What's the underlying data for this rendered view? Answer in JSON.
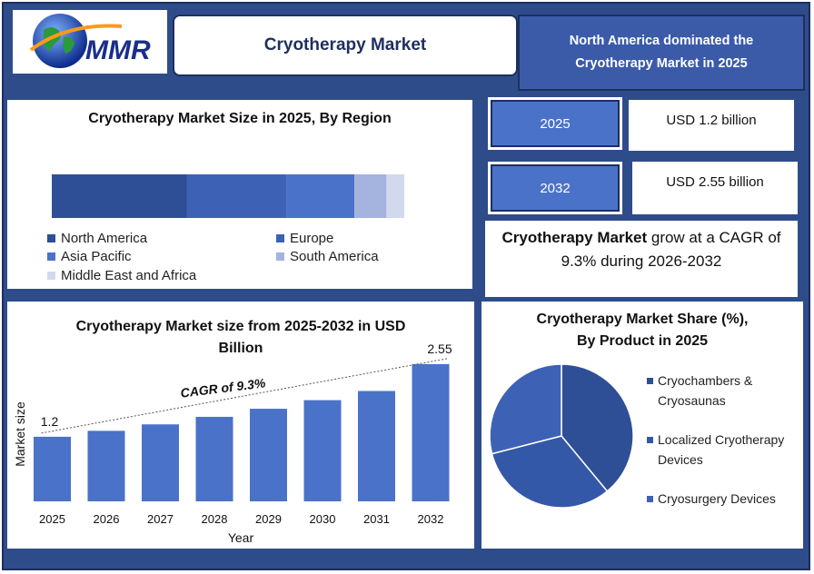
{
  "header": {
    "logo_text": "MMR",
    "title": "Cryotherapy Market",
    "headline": "North America dominated the Cryotherapy Market in 2025"
  },
  "region_chart": {
    "title": "Cryotherapy Market Size in 2025, By Region",
    "legend": [
      "North America",
      "Europe",
      "Asia Pacific",
      "South America",
      "Middle East and Africa"
    ]
  },
  "stats": {
    "year_a": "2025",
    "value_a": "USD 1.2 billion",
    "year_b": "2032",
    "value_b": "USD 2.55 billion",
    "cagr_bold": "Cryotherapy Market",
    "cagr_rest": " grow at a CAGR of 9.3% during 2026-2032"
  },
  "colors": {
    "frame": "#2f4c8a",
    "bar": "#4a72c9",
    "region": [
      "#2e4f95",
      "#3d62b5",
      "#4a72c9",
      "#a4b4de",
      "#d3d9ec"
    ],
    "pie": [
      "#2e4f95",
      "#3458a8",
      "#3d62b5"
    ]
  },
  "chart_data": [
    {
      "type": "bar",
      "orientation": "horizontal-stacked",
      "title": "Cryotherapy Market Size in 2025, By Region",
      "categories": [
        "North America",
        "Europe",
        "Asia Pacific",
        "South America",
        "Middle East and Africa"
      ],
      "values": [
        38,
        28,
        19,
        9,
        5
      ],
      "legend": "bottom"
    },
    {
      "type": "bar",
      "title": "Cryotherapy Market size from 2025-2032 in USD Billion",
      "xlabel": "Year",
      "ylabel": "Market size",
      "categories": [
        "2025",
        "2026",
        "2027",
        "2028",
        "2029",
        "2030",
        "2031",
        "2032"
      ],
      "values": [
        1.2,
        1.31,
        1.43,
        1.57,
        1.72,
        1.88,
        2.05,
        2.55
      ],
      "data_labels": {
        "first": "1.2",
        "last": "2.55"
      },
      "annotation": "CAGR of 9.3%",
      "ylim": [
        0,
        2.7
      ],
      "grid": false
    },
    {
      "type": "pie",
      "title": "Cryotherapy Market Share (%), By Product in 2025",
      "categories": [
        "Cryochambers & Cryosaunas",
        "Localized Cryotherapy Devices",
        "Cryosurgery Devices"
      ],
      "values": [
        39,
        32,
        29
      ],
      "legend": "right"
    }
  ]
}
